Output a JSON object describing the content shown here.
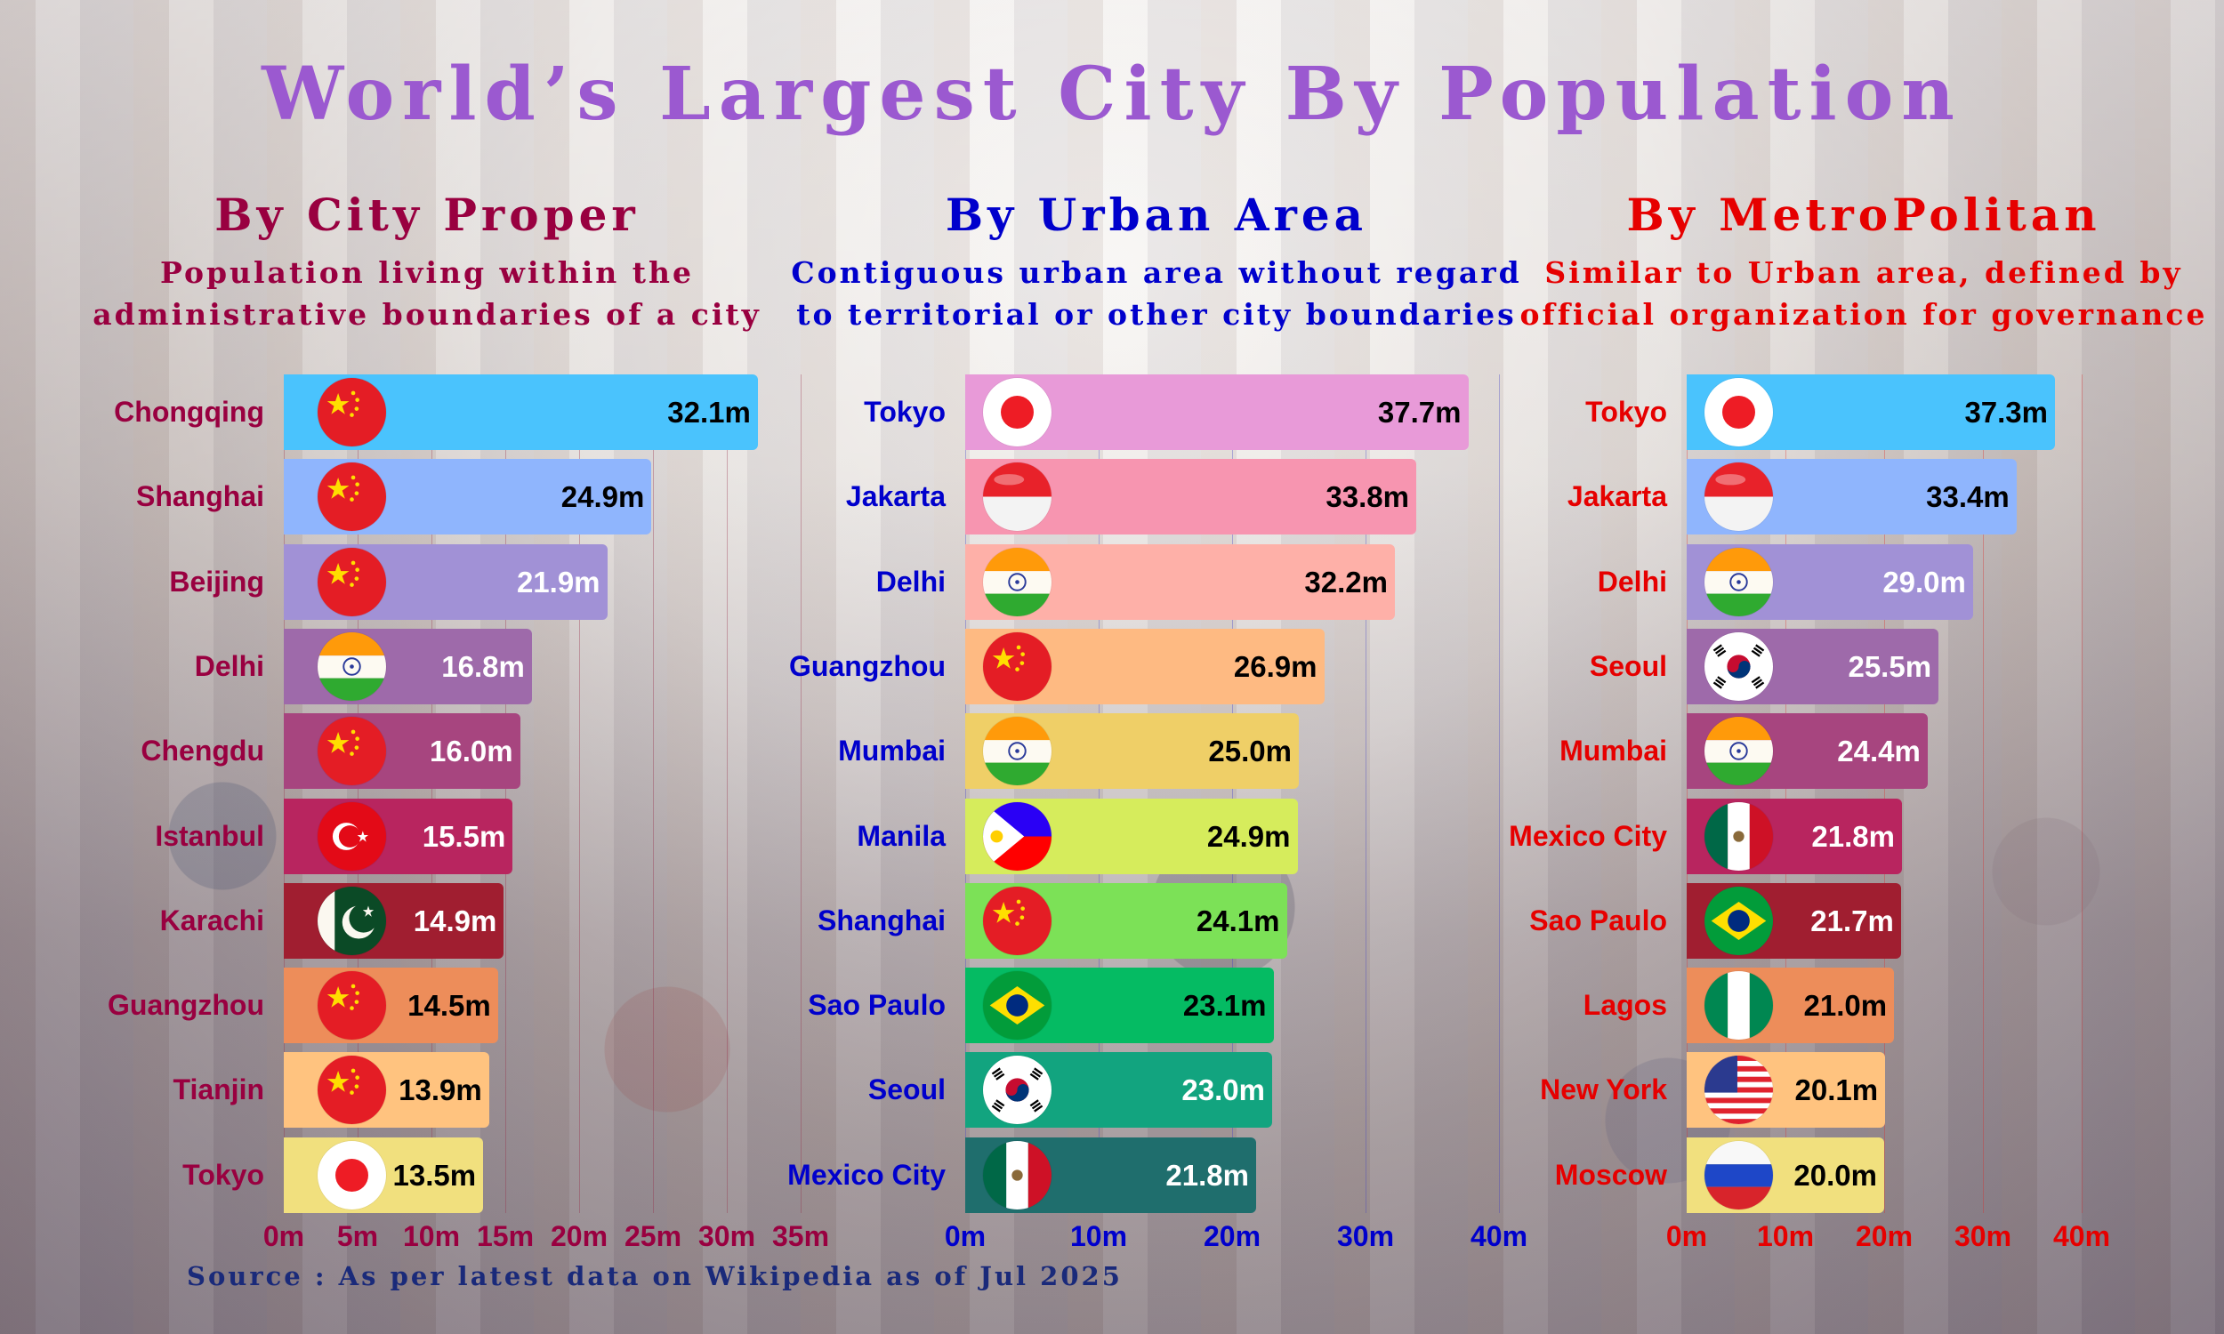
{
  "title": "World’s Largest City By Population",
  "source": "Source : As per latest data on Wikipedia as of Jul 2025",
  "sections": [
    {
      "heading": "By City Proper",
      "desc_line1": "Population living within the",
      "desc_line2": "administrative boundaries of a city",
      "color": "#990040"
    },
    {
      "heading": "By Urban Area",
      "desc_line1": "Contiguous urban area without regard",
      "desc_line2": "to territorial or other city boundaries",
      "color": "#0000cc"
    },
    {
      "heading": "By MetroPolitan",
      "desc_line1": "Similar to Urban area, defined by",
      "desc_line2": "official organization for governance",
      "color": "#e60000"
    }
  ],
  "charts": [
    {
      "cities": [
        {
          "name": "Chongqing",
          "value": "32.1m",
          "flag": "china-flag-icon"
        },
        {
          "name": "Shanghai",
          "value": "24.9m",
          "flag": "china-flag-icon"
        },
        {
          "name": "Beijing",
          "value": "21.9m",
          "flag": "china-flag-icon"
        },
        {
          "name": "Delhi",
          "value": "16.8m",
          "flag": "india-flag-icon"
        },
        {
          "name": "Chengdu",
          "value": "16.0m",
          "flag": "china-flag-icon"
        },
        {
          "name": "Istanbul",
          "value": "15.5m",
          "flag": "turkey-flag-icon"
        },
        {
          "name": "Karachi",
          "value": "14.9m",
          "flag": "pakistan-flag-icon"
        },
        {
          "name": "Guangzhou",
          "value": "14.5m",
          "flag": "china-flag-icon"
        },
        {
          "name": "Tianjin",
          "value": "13.9m",
          "flag": "china-flag-icon"
        },
        {
          "name": "Tokyo",
          "value": "13.5m",
          "flag": "japan-flag-icon"
        }
      ],
      "ticks": [
        "0m",
        "5m",
        "10m",
        "15m",
        "20m",
        "25m",
        "30m",
        "35m"
      ]
    },
    {
      "cities": [
        {
          "name": "Tokyo",
          "value": "37.7m",
          "flag": "japan-flag-icon"
        },
        {
          "name": "Jakarta",
          "value": "33.8m",
          "flag": "indonesia-flag-icon"
        },
        {
          "name": "Delhi",
          "value": "32.2m",
          "flag": "india-flag-icon"
        },
        {
          "name": "Guangzhou",
          "value": "26.9m",
          "flag": "china-flag-icon"
        },
        {
          "name": "Mumbai",
          "value": "25.0m",
          "flag": "india-flag-icon"
        },
        {
          "name": "Manila",
          "value": "24.9m",
          "flag": "philippines-flag-icon"
        },
        {
          "name": "Shanghai",
          "value": "24.1m",
          "flag": "china-flag-icon"
        },
        {
          "name": "Sao Paulo",
          "value": "23.1m",
          "flag": "brazil-flag-icon"
        },
        {
          "name": "Seoul",
          "value": "23.0m",
          "flag": "south-korea-flag-icon"
        },
        {
          "name": "Mexico City",
          "value": "21.8m",
          "flag": "mexico-flag-icon"
        }
      ],
      "ticks": [
        "0m",
        "10m",
        "20m",
        "30m",
        "40m"
      ]
    },
    {
      "cities": [
        {
          "name": "Tokyo",
          "value": "37.3m",
          "flag": "japan-flag-icon"
        },
        {
          "name": "Jakarta",
          "value": "33.4m",
          "flag": "indonesia-flag-icon"
        },
        {
          "name": "Delhi",
          "value": "29.0m",
          "flag": "india-flag-icon"
        },
        {
          "name": "Seoul",
          "value": "25.5m",
          "flag": "south-korea-flag-icon"
        },
        {
          "name": "Mumbai",
          "value": "24.4m",
          "flag": "india-flag-icon"
        },
        {
          "name": "Mexico City",
          "value": "21.8m",
          "flag": "mexico-flag-icon"
        },
        {
          "name": "Sao Paulo",
          "value": "21.7m",
          "flag": "brazil-flag-icon"
        },
        {
          "name": "Lagos",
          "value": "21.0m",
          "flag": "nigeria-flag-icon"
        },
        {
          "name": "New York",
          "value": "20.1m",
          "flag": "usa-flag-icon"
        },
        {
          "name": "Moscow",
          "value": "20.0m",
          "flag": "russia-flag-icon"
        }
      ],
      "ticks": [
        "0m",
        "10m",
        "20m",
        "30m",
        "40m"
      ]
    }
  ],
  "colors": {
    "title": "#9b59d0",
    "palette_a": [
      "#4ac3fd",
      "#8fb5fd",
      "#a191d6",
      "#9e6aaa",
      "#a7457f",
      "#b8255f",
      "#a01e30",
      "#ed8d5a",
      "#ffc37f",
      "#f1e07e"
    ],
    "palette_b": [
      "#e89ad8",
      "#f795b0",
      "#feb0a8",
      "#feba82",
      "#efcf67",
      "#d6ec5c",
      "#7ce157",
      "#05bb63",
      "#12a47f",
      "#1f6e6d"
    ]
  },
  "chart_data": [
    {
      "type": "bar",
      "title": "By City Proper",
      "subtitle": "Population living within the administrative boundaries of a city",
      "orientation": "horizontal",
      "categories": [
        "Chongqing",
        "Shanghai",
        "Beijing",
        "Delhi",
        "Chengdu",
        "Istanbul",
        "Karachi",
        "Guangzhou",
        "Tianjin",
        "Tokyo"
      ],
      "values": [
        32.1,
        24.9,
        21.9,
        16.8,
        16.0,
        15.5,
        14.9,
        14.5,
        13.9,
        13.5
      ],
      "unit": "million",
      "xlabel": "",
      "ylabel": "",
      "xlim": [
        0,
        35
      ],
      "xticks": [
        "0m",
        "5m",
        "10m",
        "15m",
        "20m",
        "25m",
        "30m",
        "35m"
      ],
      "grid": true,
      "legend": null
    },
    {
      "type": "bar",
      "title": "By Urban Area",
      "subtitle": "Contiguous urban area without regard to territorial or other city boundaries",
      "orientation": "horizontal",
      "categories": [
        "Tokyo",
        "Jakarta",
        "Delhi",
        "Guangzhou",
        "Mumbai",
        "Manila",
        "Shanghai",
        "Sao Paulo",
        "Seoul",
        "Mexico City"
      ],
      "values": [
        37.7,
        33.8,
        32.2,
        26.9,
        25.0,
        24.9,
        24.1,
        23.1,
        23.0,
        21.8
      ],
      "unit": "million",
      "xlabel": "",
      "ylabel": "",
      "xlim": [
        0,
        40
      ],
      "xticks": [
        "0m",
        "10m",
        "20m",
        "30m",
        "40m"
      ],
      "grid": true,
      "legend": null
    },
    {
      "type": "bar",
      "title": "By MetroPolitan",
      "subtitle": "Similar to Urban area, defined by official organization for governance",
      "orientation": "horizontal",
      "categories": [
        "Tokyo",
        "Jakarta",
        "Delhi",
        "Seoul",
        "Mumbai",
        "Mexico City",
        "Sao Paulo",
        "Lagos",
        "New York",
        "Moscow"
      ],
      "values": [
        37.3,
        33.4,
        29.0,
        25.5,
        24.4,
        21.8,
        21.7,
        21.0,
        20.1,
        20.0
      ],
      "unit": "million",
      "xlabel": "",
      "ylabel": "",
      "xlim": [
        0,
        40
      ],
      "xticks": [
        "0m",
        "10m",
        "20m",
        "30m",
        "40m"
      ],
      "grid": true,
      "legend": null
    }
  ]
}
